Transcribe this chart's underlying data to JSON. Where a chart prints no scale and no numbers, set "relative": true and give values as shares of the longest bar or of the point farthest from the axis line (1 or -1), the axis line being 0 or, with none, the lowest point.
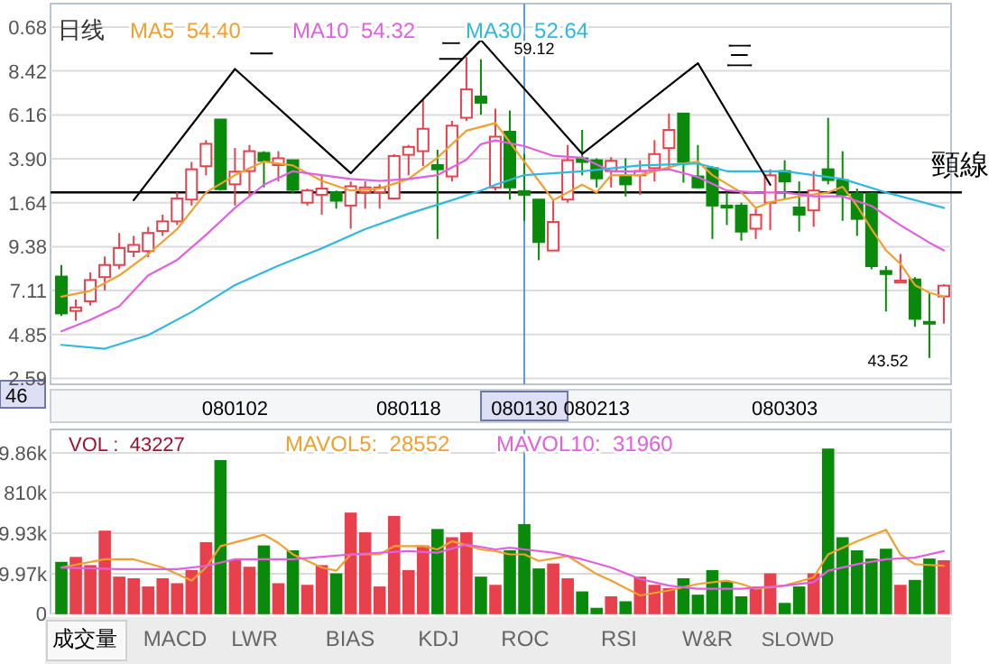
{
  "chart_data": [
    {
      "type": "candlestick",
      "categories": [
        null,
        null,
        null,
        null,
        null,
        null,
        null,
        null,
        null,
        null,
        null,
        null,
        "080102",
        null,
        null,
        null,
        null,
        null,
        null,
        null,
        null,
        null,
        null,
        null,
        "080118",
        null,
        null,
        null,
        null,
        null,
        null,
        null,
        "080130",
        null,
        null,
        null,
        null,
        "080213",
        null,
        null,
        null,
        null,
        null,
        null,
        null,
        null,
        null,
        null,
        null,
        null,
        "080303",
        null,
        null,
        null,
        null,
        null,
        null,
        null,
        null,
        null,
        null,
        null
      ],
      "ohlc": [
        [
          47.74,
          48.34,
          45.7,
          45.83
        ],
        [
          45.96,
          46.55,
          45.45,
          46.14
        ],
        [
          46.46,
          47.96,
          46.24,
          47.56
        ],
        [
          47.71,
          48.78,
          47.02,
          48.34
        ],
        [
          48.34,
          50.0,
          48.12,
          49.22
        ],
        [
          49.03,
          49.85,
          48.75,
          49.38
        ],
        [
          49.06,
          50.32,
          48.75,
          50.0
        ],
        [
          50.1,
          50.95,
          49.85,
          50.6
        ],
        [
          50.6,
          52.11,
          50.41,
          51.79
        ],
        [
          51.73,
          53.68,
          51.42,
          53.3
        ],
        [
          53.46,
          54.81,
          52.99,
          54.62
        ],
        [
          55.88,
          55.88,
          52.2,
          52.27
        ],
        [
          52.52,
          54.4,
          51.42,
          53.18
        ],
        [
          53.21,
          54.56,
          51.89,
          54.24
        ],
        [
          54.15,
          54.24,
          52.36,
          53.74
        ],
        [
          53.52,
          54.24,
          52.67,
          53.87
        ],
        [
          53.77,
          53.77,
          52.05,
          52.23
        ],
        [
          51.57,
          52.3,
          51.42,
          52.2
        ],
        [
          51.98,
          52.99,
          50.95,
          52.3
        ],
        [
          52.11,
          52.2,
          51.26,
          51.67
        ],
        [
          51.42,
          52.67,
          50.22,
          52.42
        ],
        [
          52.11,
          52.67,
          51.26,
          52.36
        ],
        [
          52.11,
          52.52,
          51.26,
          52.36
        ],
        [
          51.79,
          54.09,
          51.73,
          53.99
        ],
        [
          54.05,
          54.56,
          52.99,
          54.46
        ],
        [
          54.24,
          56.91,
          53.46,
          55.4
        ],
        [
          53.52,
          54.31,
          49.69,
          53.3
        ],
        [
          52.93,
          55.81,
          52.67,
          55.56
        ],
        [
          55.97,
          59.12,
          55.81,
          57.44
        ],
        [
          57.07,
          59.0,
          56.13,
          56.75
        ],
        [
          52.36,
          56.44,
          52.2,
          54.99
        ],
        [
          55.25,
          56.35,
          51.73,
          52.36
        ],
        [
          52.17,
          54.09,
          50.63,
          51.98
        ],
        [
          51.73,
          51.73,
          48.59,
          49.53
        ],
        [
          49.09,
          51.73,
          49.09,
          50.57
        ],
        [
          51.73,
          54.56,
          51.57,
          53.77
        ],
        [
          53.87,
          55.34,
          52.99,
          53.68
        ],
        [
          53.77,
          53.87,
          52.36,
          52.83
        ],
        [
          53.21,
          53.93,
          52.36,
          53.74
        ],
        [
          52.93,
          53.87,
          51.89,
          52.52
        ],
        [
          52.99,
          53.77,
          51.98,
          53.21
        ],
        [
          53.36,
          54.81,
          52.67,
          54.09
        ],
        [
          54.4,
          56.19,
          53.3,
          55.34
        ],
        [
          56.19,
          56.19,
          52.61,
          53.68
        ],
        [
          52.93,
          54.56,
          52.3,
          52.36
        ],
        [
          53.36,
          53.46,
          49.69,
          51.42
        ],
        [
          51.42,
          52.11,
          50.41,
          51.32
        ],
        [
          51.42,
          51.57,
          49.6,
          50.07
        ],
        [
          50.22,
          51.26,
          49.69,
          50.95
        ],
        [
          51.57,
          53.3,
          50.16,
          52.99
        ],
        [
          53.21,
          53.77,
          51.73,
          52.67
        ],
        [
          51.32,
          52.67,
          50.07,
          50.95
        ],
        [
          51.17,
          53.21,
          50.32,
          52.2
        ],
        [
          53.3,
          55.97,
          52.52,
          52.74
        ],
        [
          52.74,
          54.24,
          50.63,
          51.98
        ],
        [
          52.05,
          52.3,
          49.85,
          50.73
        ],
        [
          52.05,
          52.11,
          48.12,
          48.28
        ],
        [
          48.03,
          48.28,
          45.93,
          47.87
        ],
        [
          47.43,
          48.91,
          47.4,
          47.53
        ],
        [
          47.59,
          47.71,
          45.14,
          45.55
        ],
        [
          45.39,
          46.87,
          43.52,
          45.3
        ],
        [
          46.71,
          47.34,
          45.3,
          47.27
        ]
      ],
      "colors": [
        "#0a8a0a",
        "#e8404c",
        "#e8404c",
        "#e8404c",
        "#e8404c",
        "#e8404c",
        "#e8404c",
        "#e8404c",
        "#e8404c",
        "#e8404c",
        "#e8404c",
        "#0a8a0a",
        "#e8404c",
        "#e8404c",
        "#0a8a0a",
        "#e8404c",
        "#0a8a0a",
        "#e8404c",
        "#e8404c",
        "#0a8a0a",
        "#e8404c",
        "#e8404c",
        "#e8404c",
        "#e8404c",
        "#e8404c",
        "#e8404c",
        "#0a8a0a",
        "#e8404c",
        "#e8404c",
        "#0a8a0a",
        "#e8404c",
        "#0a8a0a",
        "#0a8a0a",
        "#0a8a0a",
        "#e8404c",
        "#e8404c",
        "#0a8a0a",
        "#0a8a0a",
        "#e8404c",
        "#0a8a0a",
        "#e8404c",
        "#e8404c",
        "#e8404c",
        "#0a8a0a",
        "#0a8a0a",
        "#0a8a0a",
        "#0a8a0a",
        "#0a8a0a",
        "#e8404c",
        "#e8404c",
        "#0a8a0a",
        "#0a8a0a",
        "#e8404c",
        "#0a8a0a",
        "#0a8a0a",
        "#0a8a0a",
        "#0a8a0a",
        "#0a8a0a",
        "#e8404c",
        "#0a8a0a",
        "#0a8a0a",
        "#e8404c"
      ],
      "series": [
        {
          "type": "line",
          "name": "MA5  54.40",
          "color": "#f0a030",
          "values": [
            46.7,
            null,
            47.0,
            null,
            47.8,
            null,
            48.9,
            null,
            50.2,
            null,
            52.1,
            null,
            53.0,
            null,
            53.7,
            null,
            53.5,
            null,
            52.7,
            null,
            52.2,
            null,
            52.3,
            null,
            52.8,
            null,
            53.9,
            null,
            55.3,
            null,
            55.7,
            null,
            null,
            52.7,
            51.7,
            null,
            52.5,
            52.1,
            53.0,
            null,
            53.0,
            null,
            null,
            53.6,
            53.7,
            53.0,
            null,
            52.1,
            51.3,
            51.6,
            null,
            51.9,
            null,
            52.1,
            52.4,
            51.4,
            50.2,
            49.1,
            48.4,
            47.3,
            46.9,
            46.7
          ]
        },
        {
          "type": "line",
          "name": "MA10  54.32",
          "color": "#e060e0",
          "values": [
            44.9,
            null,
            45.5,
            null,
            46.2,
            null,
            47.8,
            null,
            48.6,
            null,
            49.9,
            null,
            51.3,
            null,
            52.5,
            null,
            53.2,
            null,
            53.0,
            null,
            52.8,
            null,
            52.7,
            null,
            52.8,
            null,
            53.0,
            null,
            53.8,
            54.6,
            54.8,
            null,
            54.5,
            null,
            54.0,
            null,
            53.9,
            null,
            53.2,
            null,
            53.2,
            null,
            53.3,
            null,
            52.9,
            null,
            52.2,
            null,
            52.1,
            null,
            52.1,
            null,
            51.9,
            null,
            51.9,
            null,
            51.4,
            null,
            50.4,
            null,
            49.5,
            49.1
          ]
        },
        {
          "type": "line",
          "name": "MA30  52.64",
          "color": "#30b8e0",
          "values": [
            44.2,
            null,
            null,
            44.0,
            null,
            null,
            44.7,
            null,
            null,
            45.9,
            null,
            null,
            47.3,
            null,
            null,
            48.3,
            null,
            null,
            49.2,
            null,
            null,
            50.2,
            null,
            null,
            51.0,
            null,
            null,
            51.7,
            null,
            52.2,
            52.5,
            null,
            53.0,
            null,
            null,
            null,
            53.2,
            null,
            null,
            null,
            53.5,
            null,
            null,
            null,
            53.6,
            null,
            53.2,
            null,
            null,
            null,
            53.2,
            null,
            null,
            null,
            52.8,
            null,
            null,
            52.1,
            null,
            null,
            null,
            51.3
          ]
        },
        {
          "type": "line",
          "color": "#000000",
          "values": [
            null,
            null,
            null,
            null,
            null,
            51.7,
            null,
            null,
            null,
            null,
            null,
            null,
            58.5,
            null,
            null,
            null,
            null,
            null,
            null,
            null,
            53.1,
            null,
            null,
            null,
            null,
            null,
            null,
            null,
            null,
            60.0,
            null,
            null,
            null,
            null,
            null,
            null,
            54.1,
            null,
            null,
            null,
            null,
            null,
            null,
            null,
            58.8,
            null,
            null,
            null,
            null,
            52.5,
            null,
            null,
            null,
            null,
            null,
            null,
            null,
            null,
            null,
            null,
            null,
            null
          ]
        }
      ],
      "grid": true,
      "legend": "top",
      "ref_lines": [
        {
          "axis": "y",
          "value": 52.1,
          "label": "頸線",
          "color": "#000000"
        },
        {
          "axis": "x",
          "value": "080130",
          "color": "#5a9ad8"
        }
      ],
      "annotations": [
        "日线",
        "一",
        "二",
        "三",
        "59.12",
        "43.52",
        "46",
        "0.68",
        "8.42",
        "6.16",
        "3.90",
        "1.64",
        "9.38",
        "7.11",
        "4.85",
        "2.59"
      ]
    },
    {
      "type": "bar",
      "relative": true,
      "categories": [
        null,
        null,
        null,
        null,
        null,
        null,
        null,
        null,
        null,
        null,
        null,
        null,
        "080102",
        null,
        null,
        null,
        null,
        null,
        null,
        null,
        null,
        null,
        null,
        null,
        "080118",
        null,
        null,
        null,
        null,
        null,
        null,
        null,
        "080130",
        null,
        null,
        null,
        null,
        "080213",
        null,
        null,
        null,
        null,
        null,
        null,
        null,
        null,
        null,
        null,
        null,
        null,
        "080303",
        null,
        null,
        null,
        null,
        null,
        null,
        null,
        null,
        null,
        null,
        null
      ],
      "tick_labels": "y",
      "series": [
        {
          "type": "bar",
          "colors": [
            "#0a8a0a",
            "#e8404c",
            "#e8404c",
            "#e8404c",
            "#e8404c",
            "#e8404c",
            "#e8404c",
            "#e8404c",
            "#e8404c",
            "#e8404c",
            "#e8404c",
            "#0a8a0a",
            "#e8404c",
            "#e8404c",
            "#0a8a0a",
            "#e8404c",
            "#0a8a0a",
            "#e8404c",
            "#e8404c",
            "#0a8a0a",
            "#e8404c",
            "#e8404c",
            "#e8404c",
            "#e8404c",
            "#e8404c",
            "#e8404c",
            "#0a8a0a",
            "#e8404c",
            "#e8404c",
            "#0a8a0a",
            "#e8404c",
            "#0a8a0a",
            "#0a8a0a",
            "#0a8a0a",
            "#e8404c",
            "#e8404c",
            "#0a8a0a",
            "#0a8a0a",
            "#e8404c",
            "#0a8a0a",
            "#e8404c",
            "#e8404c",
            "#e8404c",
            "#0a8a0a",
            "#0a8a0a",
            "#0a8a0a",
            "#0a8a0a",
            "#0a8a0a",
            "#e8404c",
            "#e8404c",
            "#0a8a0a",
            "#0a8a0a",
            "#e8404c",
            "#0a8a0a",
            "#0a8a0a",
            "#0a8a0a",
            "#0a8a0a",
            "#0a8a0a",
            "#e8404c",
            "#0a8a0a",
            "#0a8a0a",
            "#e8404c"
          ],
          "values": [
            0.31,
            0.34,
            0.29,
            0.5,
            0.22,
            0.21,
            0.16,
            0.21,
            0.18,
            0.26,
            0.43,
            0.93,
            0.32,
            0.28,
            0.41,
            0.18,
            0.38,
            0.17,
            0.29,
            0.24,
            0.61,
            0.49,
            0.16,
            0.59,
            0.26,
            0.41,
            0.51,
            0.46,
            0.49,
            0.22,
            0.17,
            0.38,
            0.54,
            0.27,
            0.3,
            0.21,
            0.13,
            0.03,
            0.1,
            0.07,
            0.22,
            0.17,
            0.15,
            0.21,
            0.11,
            0.26,
            0.19,
            0.1,
            0.16,
            0.24,
            0.06,
            0.16,
            0.24,
            1,
            0.46,
            0.38,
            0.33,
            0.39,
            0.17,
            0.2,
            0.33,
            0.32
          ]
        },
        {
          "type": "line",
          "name": "MAVOL5:  28552",
          "color": "#f0a030",
          "values": [
            0.28,
            null,
            null,
            0.33,
            null,
            0.33,
            null,
            0.28,
            null,
            0.2,
            0.28,
            0.41,
            null,
            null,
            0.48,
            0.43,
            0.36,
            null,
            0.28,
            0.26,
            0.36,
            null,
            0.36,
            0.41,
            null,
            0.41,
            0.39,
            0.44,
            null,
            0.39,
            0.38,
            0.36,
            0.36,
            0.32,
            null,
            0.35,
            null,
            0.24,
            0.2,
            null,
            0.11,
            null,
            0.14,
            null,
            0.18,
            null,
            0.2,
            0.18,
            0.15,
            null,
            0.17,
            null,
            0.22,
            0.36,
            null,
            0.44,
            null,
            0.51,
            0.36,
            0.3,
            null,
            0.29
          ]
        },
        {
          "type": "line",
          "name": "MAVOL10:  31960",
          "color": "#e060e0",
          "values": [
            0.28,
            null,
            null,
            null,
            0.27,
            null,
            null,
            null,
            0.27,
            null,
            0.29,
            null,
            0.33,
            null,
            null,
            null,
            0.33,
            null,
            null,
            null,
            0.36,
            null,
            null,
            null,
            0.38,
            null,
            0.37,
            null,
            0.42,
            null,
            0.39,
            0.4,
            0.39,
            null,
            0.37,
            null,
            0.33,
            null,
            0.28,
            null,
            0.21,
            null,
            0.17,
            null,
            0.15,
            null,
            null,
            0.15,
            null,
            null,
            0.17,
            null,
            0.19,
            0.26,
            null,
            0.3,
            null,
            0.33,
            null,
            0.34,
            null,
            0.38
          ]
        }
      ],
      "grid": true,
      "legend": "top",
      "ref_lines": [
        {
          "axis": "x",
          "value": "080130",
          "color": "#5a9ad8"
        }
      ],
      "annotations": [
        "VOL :  43227",
        "成交量",
        "MACD",
        "LWR",
        "BIAS",
        "KDJ",
        "ROC",
        "RSI",
        "W&R",
        "SLOWD",
        "9.86k",
        "810k",
        "9.93k",
        "9.97k",
        "0"
      ]
    }
  ]
}
